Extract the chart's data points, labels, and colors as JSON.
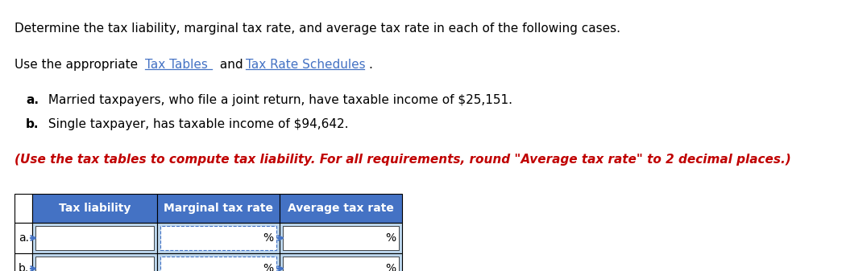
{
  "line1": "Determine the tax liability, marginal tax rate, and average tax rate in each of the following cases.",
  "line2_prefix": "Use the appropriate ",
  "link1": "Tax Tables",
  "line2_mid": " and ",
  "link2": "Tax Rate Schedules",
  "line2_suffix": ".",
  "bullet_a": "a.",
  "bullet_a_text": " Married taxpayers, who file a joint return, have taxable income of $25,151.",
  "bullet_b": "b.",
  "bullet_b_text": " Single taxpayer, has taxable income of $94,642.",
  "note": "(Use the tax tables to compute tax liability. For all requirements, round \"Average tax rate\" to 2 decimal places.)",
  "col_headers": [
    "Tax liability",
    "Marginal tax rate",
    "Average tax rate"
  ],
  "row_labels": [
    "a.",
    "b."
  ],
  "percent_sign": "%",
  "header_bg": "#4472C4",
  "header_fg": "#ffffff",
  "cell_bg_blue": "#BDD7EE",
  "cell_bg_white": "#ffffff",
  "border_color": "#000000",
  "dashed_color": "#4472C4",
  "note_color": "#C00000",
  "link_color": "#4472C4",
  "text_color": "#000000",
  "font_size_body": 11,
  "font_size_note": 11,
  "font_size_table": 10,
  "bg_color": "#ffffff"
}
